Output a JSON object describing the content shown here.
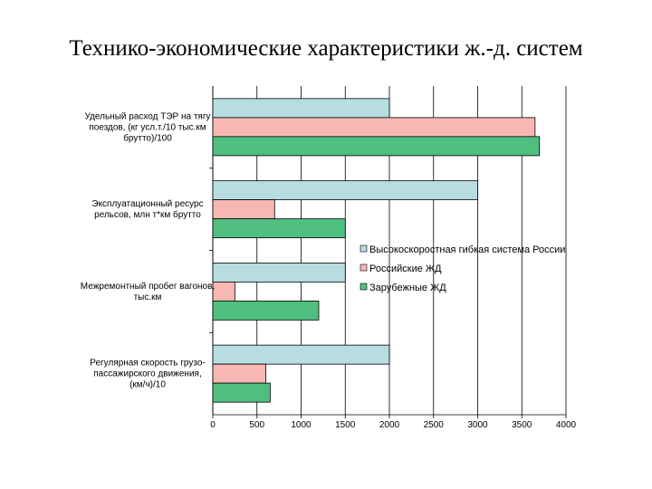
{
  "chart_data": {
    "type": "bar",
    "orientation": "horizontal",
    "title": "Технико-экономические характеристики ж.-д. систем",
    "categories": [
      [
        "Удельный расход ТЭР на тягу",
        "поездов, (кг усл.т./10 тыс.км",
        "брутто)/100"
      ],
      [
        "Эксплуатационный ресурс",
        "рельсов, млн т*км брутто"
      ],
      [
        "Межремонтный пробег вагонов,",
        "тыс.км"
      ],
      [
        "Регулярная скорость грузо-",
        "пассажирского движения,",
        "(км/ч)/10"
      ]
    ],
    "series": [
      {
        "name": "Высокоскоростная гибкая система России",
        "color": "#b7dde3",
        "values": [
          2000,
          3000,
          1500,
          2000
        ]
      },
      {
        "name": "Российские ЖД",
        "color": "#f7b7b2",
        "values": [
          3650,
          700,
          250,
          600
        ]
      },
      {
        "name": "Зарубежные ЖД",
        "color": "#4fbf80",
        "values": [
          3700,
          1500,
          1200,
          650
        ]
      }
    ],
    "xlim": [
      0,
      4000
    ],
    "xticks": [
      "0",
      "500",
      "1000",
      "1500",
      "2000",
      "2500",
      "3000",
      "3500",
      "4000"
    ],
    "grid": true,
    "legend": "right"
  }
}
